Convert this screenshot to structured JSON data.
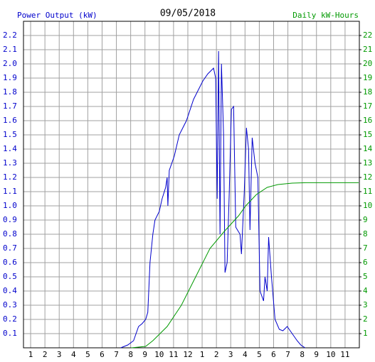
{
  "chart_data": {
    "type": "line",
    "title": "09/05/2018",
    "y_label": "Power Output (kW)",
    "y2_label": "Daily kW-Hours",
    "xlim": [
      0.5,
      24
    ],
    "xticks": [
      1,
      2,
      3,
      4,
      5,
      6,
      7,
      8,
      9,
      10,
      11,
      12,
      {
        "value": 13,
        "label": "1"
      },
      {
        "value": 14,
        "label": "2"
      },
      {
        "value": 15,
        "label": "3"
      },
      {
        "value": 16,
        "label": "4"
      },
      {
        "value": 17,
        "label": "5"
      },
      {
        "value": 18,
        "label": "6"
      },
      {
        "value": 19,
        "label": "7"
      },
      {
        "value": 20,
        "label": "8"
      },
      {
        "value": 21,
        "label": "9"
      },
      {
        "value": 22,
        "label": "10"
      },
      {
        "value": 23,
        "label": "11"
      }
    ],
    "ylim": [
      0,
      2.3
    ],
    "yticks": [
      0.1,
      0.2,
      0.3,
      0.4,
      0.5,
      0.6,
      0.7,
      0.8,
      0.9,
      {
        "value": 1.0,
        "label": "1.0"
      },
      1.1,
      1.2,
      1.3,
      1.4,
      1.5,
      1.6,
      1.7,
      1.8,
      1.9,
      {
        "value": 2.0,
        "label": "2.0"
      },
      2.1,
      2.2
    ],
    "y2lim": [
      0,
      23
    ],
    "y2ticks": [
      1,
      2,
      3,
      4,
      5,
      6,
      7,
      8,
      9,
      10,
      11,
      12,
      13,
      14,
      15,
      16,
      17,
      18,
      19,
      20,
      21,
      22
    ],
    "grid": true,
    "series": [
      {
        "name": "Power Output (kW)",
        "color": "#0000cc",
        "x": [
          7.3,
          7.8,
          8.2,
          8.55,
          8.8,
          9.05,
          9.2,
          9.35,
          9.55,
          9.7,
          10.0,
          10.2,
          10.45,
          10.55,
          10.6,
          10.7,
          11.05,
          11.4,
          11.9,
          12.4,
          13.05,
          13.4,
          13.8,
          13.95,
          14.05,
          14.15,
          14.25,
          14.35,
          14.5,
          14.6,
          14.75,
          14.9,
          15.05,
          15.2,
          15.35,
          15.65,
          15.75,
          15.95,
          16.1,
          16.25,
          16.35,
          16.5,
          16.7,
          16.9,
          17.05,
          17.3,
          17.4,
          17.55,
          17.65,
          17.85,
          18.1,
          18.4,
          18.65,
          18.95,
          19.3,
          19.65,
          19.9,
          20.2
        ],
        "values": [
          0,
          0.02,
          0.05,
          0.15,
          0.17,
          0.2,
          0.25,
          0.6,
          0.8,
          0.9,
          0.96,
          1.05,
          1.13,
          1.2,
          1.0,
          1.25,
          1.35,
          1.5,
          1.6,
          1.75,
          1.88,
          1.93,
          1.97,
          1.9,
          1.05,
          2.09,
          0.8,
          2.0,
          1.5,
          0.53,
          0.6,
          1.1,
          1.68,
          1.7,
          0.85,
          0.8,
          0.66,
          1.1,
          1.55,
          1.4,
          0.83,
          1.48,
          1.3,
          1.2,
          0.4,
          0.33,
          0.5,
          0.4,
          0.78,
          0.5,
          0.2,
          0.13,
          0.12,
          0.15,
          0.1,
          0.05,
          0.02,
          0
        ]
      },
      {
        "name": "Daily kW-Hours",
        "color": "#009900",
        "axis": "y2",
        "x": [
          8.05,
          9.05,
          9.55,
          10.55,
          11.55,
          12.55,
          13.55,
          14.55,
          15.55,
          16.05,
          16.8,
          17.55,
          18.3,
          19.3,
          20.3,
          23.95
        ],
        "values": [
          0,
          0.1,
          0.5,
          1.5,
          3,
          5,
          7,
          8.2,
          9.3,
          10,
          10.8,
          11.3,
          11.5,
          11.6,
          11.63,
          11.63
        ]
      }
    ]
  }
}
